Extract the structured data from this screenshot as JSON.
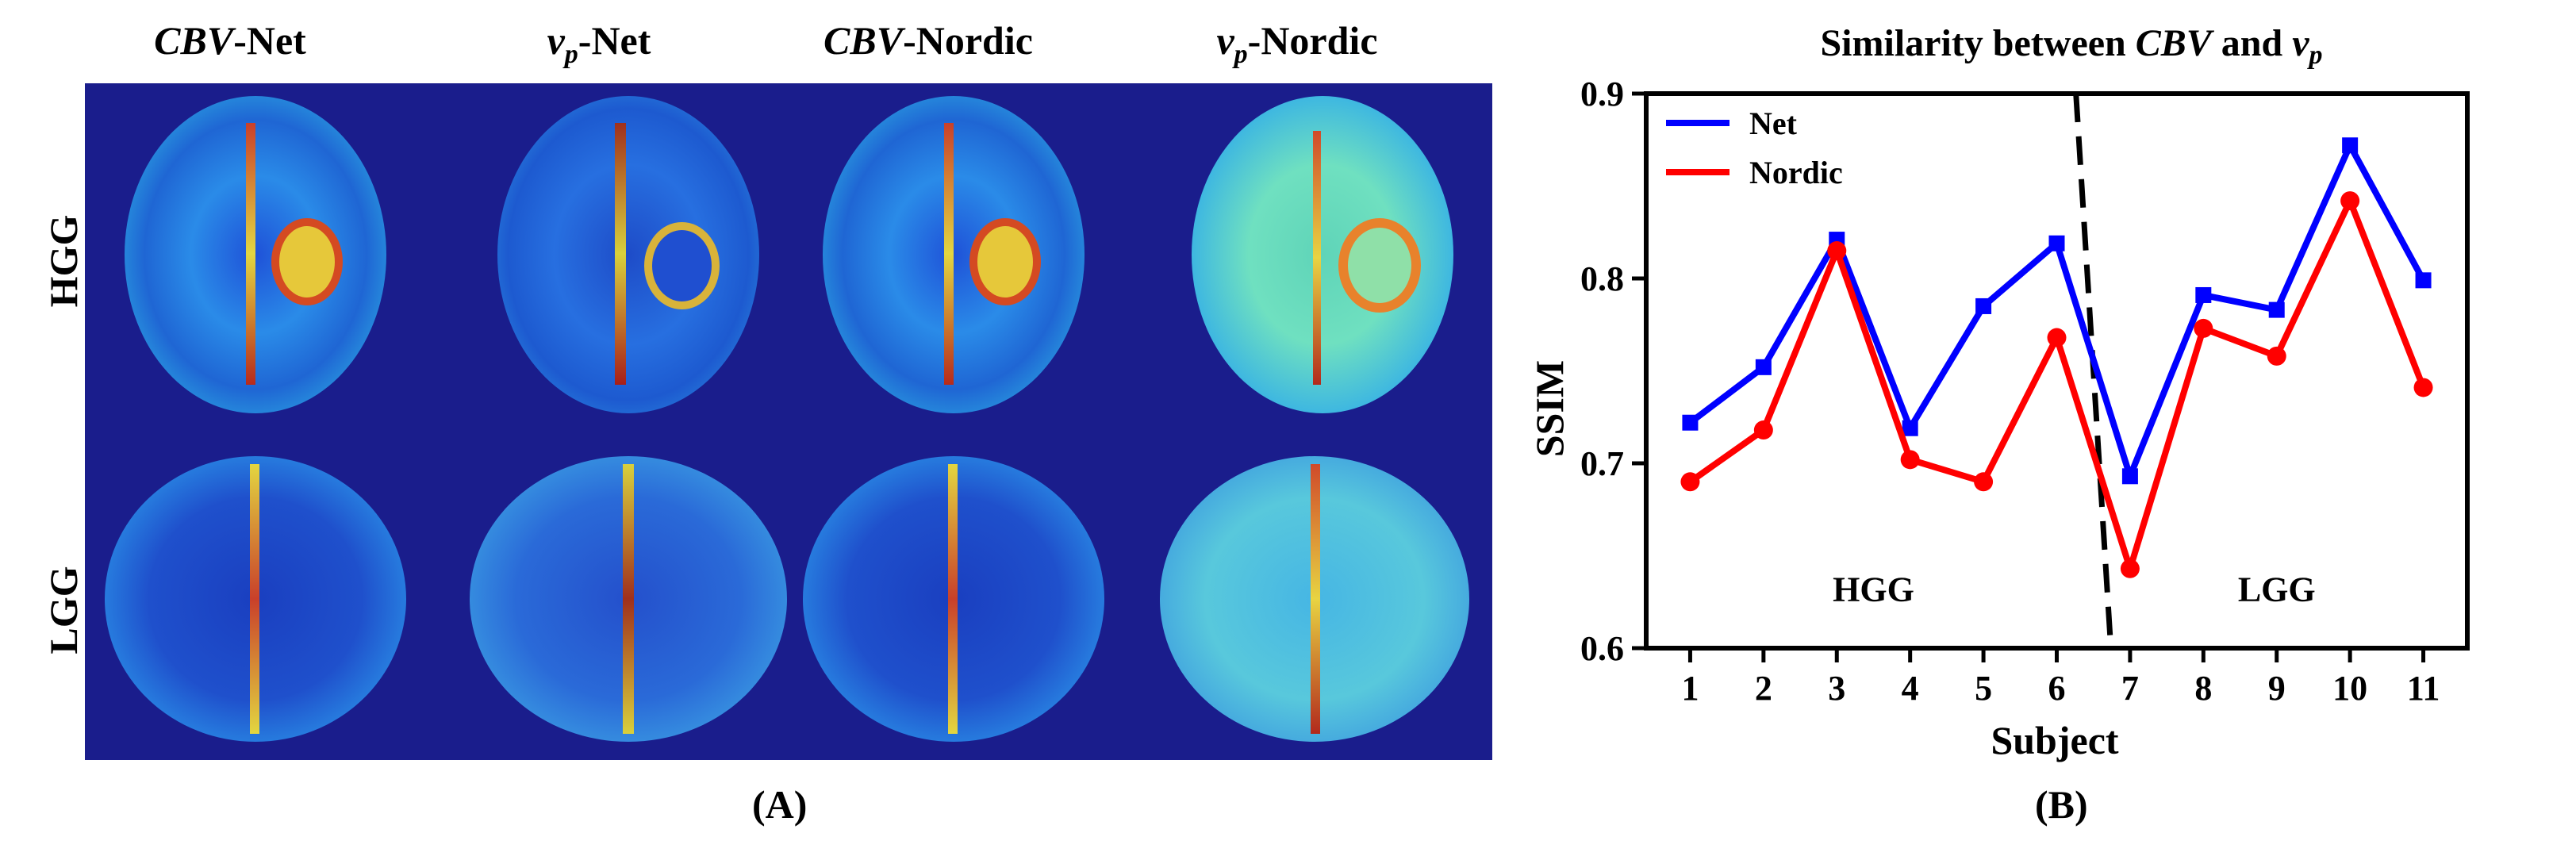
{
  "panel_a": {
    "label": "(A)",
    "columns": [
      {
        "prefix": "CBV",
        "sub": "",
        "suffix": "-Net"
      },
      {
        "prefix": "v",
        "sub": "p",
        "suffix": "-Net"
      },
      {
        "prefix": "CBV",
        "sub": "",
        "suffix": "-Nordic"
      },
      {
        "prefix": "v",
        "sub": "p",
        "suffix": "-Nordic"
      }
    ],
    "rows": [
      "HGG",
      "LGG"
    ]
  },
  "panel_b": {
    "label": "(B)"
  },
  "chart_data": {
    "type": "line",
    "title_prefix": "Similarity between ",
    "title_cbv": "CBV",
    "title_and": " and ",
    "title_v": "v",
    "title_sub": "p",
    "xlabel": "Subject",
    "ylabel": "SSIM",
    "x": [
      1,
      2,
      3,
      4,
      5,
      6,
      7,
      8,
      9,
      10,
      11
    ],
    "ylim": [
      0.6,
      0.9
    ],
    "yticks": [
      0.6,
      0.7,
      0.8,
      0.9
    ],
    "ytick_labels": [
      "0.6",
      "0.7",
      "0.8",
      "0.9"
    ],
    "series": [
      {
        "name": "Net",
        "color": "#0000ff",
        "marker": "square",
        "values": [
          0.722,
          0.752,
          0.821,
          0.719,
          0.785,
          0.819,
          0.693,
          0.791,
          0.783,
          0.872,
          0.799
        ]
      },
      {
        "name": "Nordic",
        "color": "#ff0000",
        "marker": "circle",
        "values": [
          0.69,
          0.718,
          0.815,
          0.702,
          0.69,
          0.768,
          0.643,
          0.773,
          0.758,
          0.842,
          0.741
        ]
      }
    ],
    "divider_x": 6.5,
    "region_labels": [
      {
        "text": "HGG",
        "x": 3.5,
        "y": 0.632
      },
      {
        "text": "LGG",
        "x": 9.0,
        "y": 0.632
      }
    ],
    "legend_position": "top-left",
    "grid": false
  }
}
